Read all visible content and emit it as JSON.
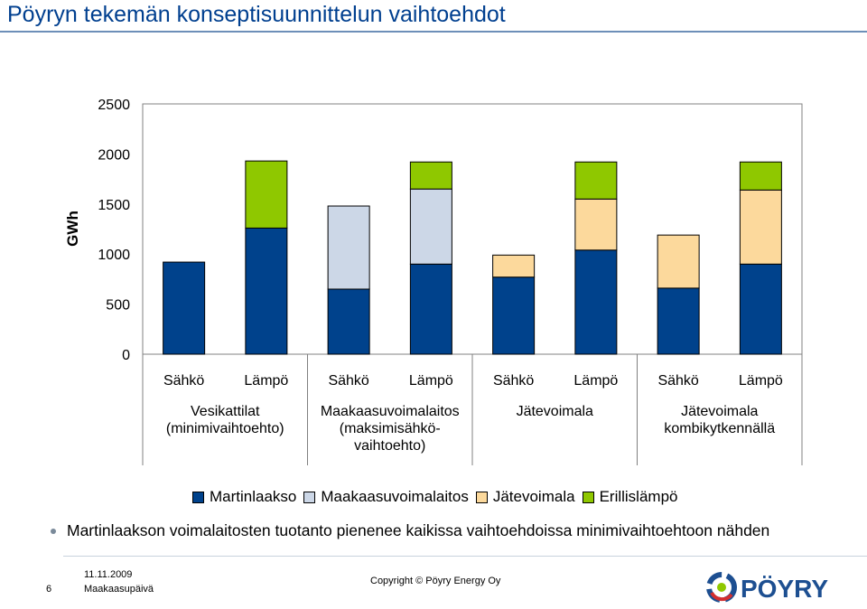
{
  "slide": {
    "title": "Pöyryn tekemän konseptisuunnittelun vaihtoehdot",
    "note": "Martinlaakson voimalaitosten tuotanto pienenee kaikissa vaihtoehdoissa minimivaihtoehtoon nähden",
    "page_number": "6",
    "date": "11.11.2009",
    "event": "Maakaasupäivä",
    "copyright": "Copyright © Pöyry Energy Oy",
    "logo_text": "PÖYRY"
  },
  "colors": {
    "title": "#003f8f",
    "martinlaakso": "#00428c",
    "maakaasuvoimalaitos": "#ccd7e7",
    "jatevoimala": "#fcd99c",
    "erillislampo": "#8fc800",
    "logo_blue": "#1d4f91"
  },
  "chart_data": {
    "type": "bar",
    "stacked": true,
    "ylabel": "GWh",
    "ylim": [
      0,
      2500
    ],
    "yticks": [
      0,
      500,
      1000,
      1500,
      2000,
      2500
    ],
    "grid": false,
    "legend_position": "bottom",
    "categories": [
      "Sähkö",
      "Lämpö",
      "Sähkö",
      "Lämpö",
      "Sähkö",
      "Lämpö",
      "Sähkö",
      "Lämpö"
    ],
    "groups": [
      "Vesikattilat\n(minimivaihtoehto)",
      "Maakaasuvoimalaitos\n(maksimisähkö-\nvaihtoehto)",
      "Jätevoimala",
      "Jätevoimala\nkombikytkennällä"
    ],
    "series": [
      {
        "name": "Martinlaakso",
        "values": [
          920,
          1260,
          650,
          900,
          770,
          1040,
          660,
          900
        ]
      },
      {
        "name": "Maakaasuvoimalaitos",
        "values": [
          0,
          0,
          830,
          750,
          0,
          0,
          0,
          0
        ]
      },
      {
        "name": "Jätevoimala",
        "values": [
          0,
          0,
          0,
          0,
          220,
          510,
          530,
          740
        ]
      },
      {
        "name": "Erillislämpö",
        "values": [
          0,
          670,
          0,
          270,
          0,
          370,
          0,
          280
        ]
      }
    ]
  }
}
